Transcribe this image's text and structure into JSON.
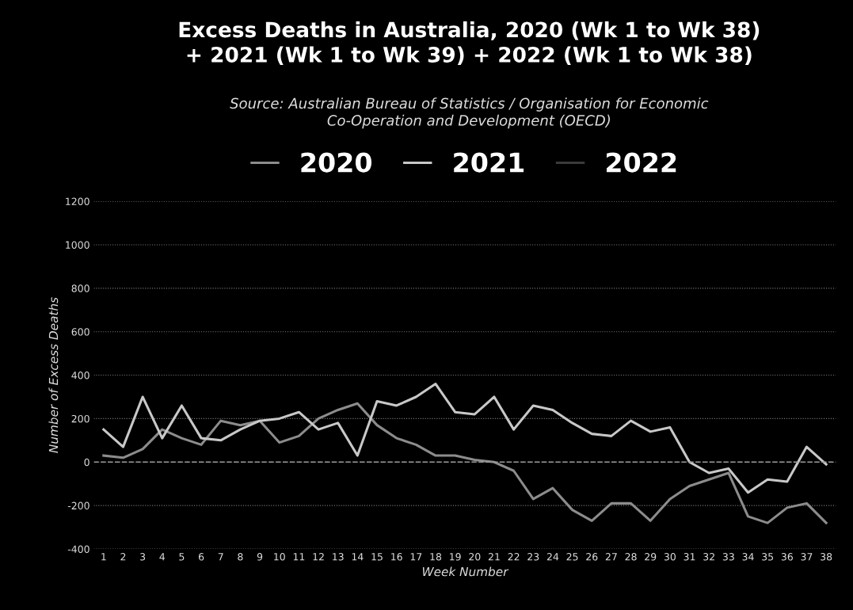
{
  "chart_data": {
    "type": "line",
    "title": "Excess Deaths in Australia, 2020 (Wk 1 to Wk 38)\n+ 2021 (Wk 1 to Wk 39) + 2022 (Wk 1 to Wk 38)",
    "subtitle": "Source: Australian Bureau of Statistics / Organisation for Economic\nCo-Operation and Development (OECD)",
    "xlabel": "Week Number",
    "ylabel": "Number of Excess Deaths",
    "categories": [
      "1",
      "2",
      "3",
      "4",
      "5",
      "6",
      "7",
      "8",
      "9",
      "10",
      "11",
      "12",
      "13",
      "14",
      "15",
      "16",
      "17",
      "18",
      "19",
      "20",
      "21",
      "22",
      "23",
      "24",
      "25",
      "26",
      "27",
      "28",
      "29",
      "30",
      "31",
      "32",
      "33",
      "34",
      "35",
      "36",
      "37",
      "38"
    ],
    "series": [
      {
        "name": "2020",
        "color": "#8c8c8c",
        "values": [
          30,
          20,
          60,
          150,
          110,
          80,
          190,
          170,
          190,
          90,
          120,
          200,
          240,
          270,
          170,
          110,
          80,
          30,
          30,
          10,
          0,
          -40,
          -170,
          -120,
          -220,
          -270,
          -190,
          -190,
          -270,
          -170,
          -110,
          -80,
          -50,
          -250,
          -280,
          -210,
          -190,
          -280
        ]
      },
      {
        "name": "2021",
        "color": "#c8c8c8",
        "values": [
          150,
          70,
          300,
          110,
          260,
          110,
          100,
          150,
          190,
          200,
          230,
          150,
          180,
          30,
          280,
          260,
          300,
          360,
          230,
          220,
          300,
          150,
          260,
          240,
          180,
          130,
          120,
          190,
          140,
          160,
          0,
          -50,
          -30,
          -140,
          -80,
          -90,
          70,
          -10
        ]
      },
      {
        "name": "2022",
        "color": "#3a3a3a",
        "values": [
          null,
          null,
          null,
          null,
          null,
          null,
          null,
          null,
          null,
          null,
          null,
          null,
          null,
          null,
          null,
          null,
          null,
          null,
          null,
          null,
          null,
          null,
          null,
          null,
          null,
          null,
          null,
          null,
          null,
          null,
          null,
          null,
          null,
          null,
          null,
          null,
          null,
          null
        ]
      }
    ],
    "ylim": [
      -400,
      1200
    ],
    "yticks": [
      -400,
      -200,
      0,
      200,
      400,
      600,
      800,
      1000,
      1200
    ],
    "grid": "y",
    "legend": "top",
    "line_style": "solid",
    "marker": "none",
    "ref_lines": [
      {
        "axis": "y",
        "value": 0,
        "color": "#9a9a9a",
        "line_style": "dashed"
      }
    ]
  }
}
